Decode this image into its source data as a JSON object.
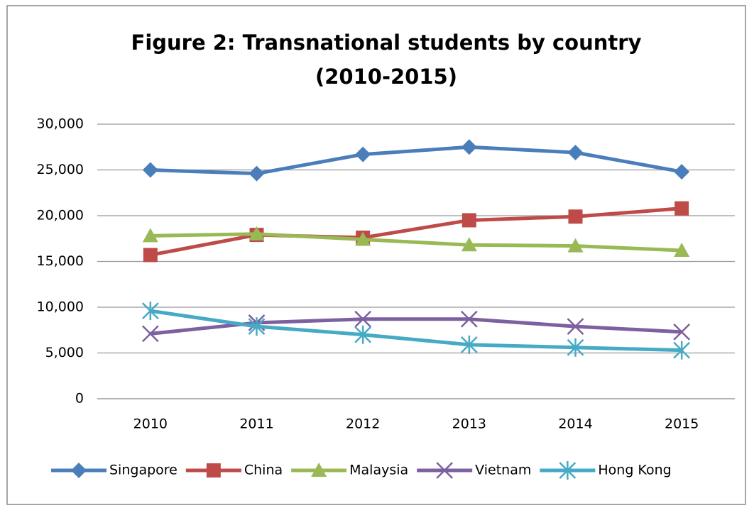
{
  "chart_data": {
    "type": "line",
    "title": [
      "Figure 2: Transnational students by country",
      "(2010-2015)"
    ],
    "categories": [
      "2010",
      "2011",
      "2012",
      "2013",
      "2014",
      "2015"
    ],
    "series": [
      {
        "name": "Singapore",
        "color": "#4a7ebb",
        "marker": "diamond",
        "values": [
          25000,
          24600,
          26700,
          27500,
          26900,
          24800
        ]
      },
      {
        "name": "China",
        "color": "#be4b48",
        "marker": "square",
        "values": [
          15700,
          17900,
          17600,
          19500,
          19900,
          20800
        ]
      },
      {
        "name": "Malaysia",
        "color": "#98b954",
        "marker": "triangle",
        "values": [
          17800,
          18000,
          17400,
          16800,
          16700,
          16200
        ]
      },
      {
        "name": "Vietnam",
        "color": "#7d60a0",
        "marker": "x",
        "values": [
          7100,
          8300,
          8700,
          8700,
          7900,
          7300
        ]
      },
      {
        "name": "Hong Kong",
        "color": "#46aac5",
        "marker": "asterisk",
        "values": [
          9600,
          7900,
          7000,
          5900,
          5600,
          5300
        ]
      }
    ],
    "ylim": [
      0,
      30000
    ],
    "yticks": [
      0,
      {
        "value": 5000,
        "label": "5,000"
      },
      {
        "value": 10000,
        "label": "10,000"
      },
      {
        "value": 15000,
        "label": "15,000"
      },
      {
        "value": 20000,
        "label": "20,000"
      },
      {
        "value": 25000,
        "label": "25,000"
      },
      {
        "value": 30000,
        "label": "30,000"
      }
    ],
    "grid": true,
    "legend": "bottom"
  }
}
